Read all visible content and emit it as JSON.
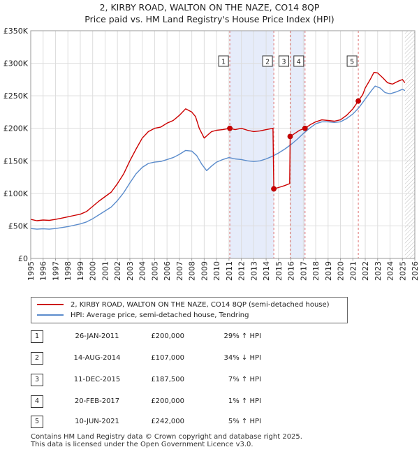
{
  "title_line1": "2, KIRBY ROAD, WALTON ON THE NAZE, CO14 8QP",
  "title_line2": "Price paid vs. HM Land Registry's House Price Index (HPI)",
  "chart_data": {
    "type": "line",
    "x_range": [
      1995,
      2026
    ],
    "ylim": [
      0,
      350000
    ],
    "y_ticks": [
      {
        "value": 0,
        "label": "£0"
      },
      {
        "value": 50000,
        "label": "£50K"
      },
      {
        "value": 100000,
        "label": "£100K"
      },
      {
        "value": 150000,
        "label": "£150K"
      },
      {
        "value": 200000,
        "label": "£200K"
      },
      {
        "value": 250000,
        "label": "£250K"
      },
      {
        "value": 300000,
        "label": "£300K"
      },
      {
        "value": 350000,
        "label": "£350K"
      }
    ],
    "x_ticks": [
      "1995",
      "1996",
      "1997",
      "1998",
      "1999",
      "2000",
      "2001",
      "2002",
      "2003",
      "2004",
      "2005",
      "2006",
      "2007",
      "2008",
      "2009",
      "2010",
      "2011",
      "2012",
      "2013",
      "2014",
      "2015",
      "2016",
      "2017",
      "2018",
      "2019",
      "2020",
      "2021",
      "2022",
      "2023",
      "2024",
      "2025",
      "2026"
    ],
    "grid": true,
    "data_end": 2025.2,
    "colors": {
      "property": "#cc0000",
      "hpi": "#5b8ccc",
      "band": "#e6ecfa",
      "vline": "#e07070",
      "hatch": "#bbbbbb"
    },
    "series": [
      {
        "name": "2, KIRBY ROAD, WALTON ON THE NAZE, CO14 8QP (semi-detached house)",
        "color": "#cc0000",
        "points": [
          [
            1995.0,
            60000
          ],
          [
            1995.5,
            58000
          ],
          [
            1996.0,
            59000
          ],
          [
            1996.5,
            58500
          ],
          [
            1997.0,
            60000
          ],
          [
            1997.5,
            62000
          ],
          [
            1998.0,
            64000
          ],
          [
            1998.5,
            66000
          ],
          [
            1999.0,
            68000
          ],
          [
            1999.5,
            72000
          ],
          [
            2000.0,
            80000
          ],
          [
            2000.5,
            88000
          ],
          [
            2001.0,
            95000
          ],
          [
            2001.5,
            102000
          ],
          [
            2002.0,
            115000
          ],
          [
            2002.5,
            130000
          ],
          [
            2003.0,
            150000
          ],
          [
            2003.5,
            168000
          ],
          [
            2004.0,
            185000
          ],
          [
            2004.5,
            195000
          ],
          [
            2005.0,
            200000
          ],
          [
            2005.5,
            202000
          ],
          [
            2006.0,
            208000
          ],
          [
            2006.5,
            212000
          ],
          [
            2007.0,
            220000
          ],
          [
            2007.5,
            230000
          ],
          [
            2008.0,
            225000
          ],
          [
            2008.3,
            218000
          ],
          [
            2008.6,
            200000
          ],
          [
            2009.0,
            185000
          ],
          [
            2009.3,
            190000
          ],
          [
            2009.6,
            195000
          ],
          [
            2010.0,
            197000
          ],
          [
            2010.5,
            198000
          ],
          [
            2011.07,
            200000
          ],
          [
            2011.5,
            198000
          ],
          [
            2012.0,
            200000
          ],
          [
            2012.5,
            197000
          ],
          [
            2013.0,
            195000
          ],
          [
            2013.5,
            196000
          ],
          [
            2014.0,
            198000
          ],
          [
            2014.55,
            200000
          ],
          [
            2014.62,
            107000
          ],
          [
            2015.0,
            109000
          ],
          [
            2015.5,
            112000
          ],
          [
            2015.9,
            115000
          ],
          [
            2015.94,
            187500
          ],
          [
            2016.3,
            192000
          ],
          [
            2016.7,
            197000
          ],
          [
            2017.14,
            200000
          ],
          [
            2017.6,
            206000
          ],
          [
            2018.0,
            210000
          ],
          [
            2018.5,
            213000
          ],
          [
            2019.0,
            212000
          ],
          [
            2019.5,
            211000
          ],
          [
            2020.0,
            213000
          ],
          [
            2020.5,
            220000
          ],
          [
            2021.0,
            230000
          ],
          [
            2021.44,
            242000
          ],
          [
            2021.8,
            252000
          ],
          [
            2022.0,
            262000
          ],
          [
            2022.4,
            275000
          ],
          [
            2022.7,
            286000
          ],
          [
            2023.0,
            285000
          ],
          [
            2023.4,
            278000
          ],
          [
            2023.8,
            270000
          ],
          [
            2024.2,
            268000
          ],
          [
            2024.6,
            272000
          ],
          [
            2025.0,
            275000
          ],
          [
            2025.2,
            270000
          ]
        ]
      },
      {
        "name": "HPI: Average price, semi-detached house, Tendring",
        "color": "#5b8ccc",
        "points": [
          [
            1995.0,
            46000
          ],
          [
            1995.5,
            45000
          ],
          [
            1996.0,
            45500
          ],
          [
            1996.5,
            45000
          ],
          [
            1997.0,
            46000
          ],
          [
            1997.5,
            47500
          ],
          [
            1998.0,
            49000
          ],
          [
            1998.5,
            51000
          ],
          [
            1999.0,
            53000
          ],
          [
            1999.5,
            56000
          ],
          [
            2000.0,
            61000
          ],
          [
            2000.5,
            67000
          ],
          [
            2001.0,
            73000
          ],
          [
            2001.5,
            79000
          ],
          [
            2002.0,
            89000
          ],
          [
            2002.5,
            101000
          ],
          [
            2003.0,
            116000
          ],
          [
            2003.5,
            130000
          ],
          [
            2004.0,
            140000
          ],
          [
            2004.5,
            146000
          ],
          [
            2005.0,
            148000
          ],
          [
            2005.5,
            149000
          ],
          [
            2006.0,
            152000
          ],
          [
            2006.5,
            155000
          ],
          [
            2007.0,
            160000
          ],
          [
            2007.5,
            166000
          ],
          [
            2008.0,
            165000
          ],
          [
            2008.4,
            158000
          ],
          [
            2008.8,
            145000
          ],
          [
            2009.2,
            135000
          ],
          [
            2009.6,
            142000
          ],
          [
            2010.0,
            148000
          ],
          [
            2010.5,
            152000
          ],
          [
            2011.0,
            155000
          ],
          [
            2011.5,
            153000
          ],
          [
            2012.0,
            152000
          ],
          [
            2012.5,
            150000
          ],
          [
            2013.0,
            149000
          ],
          [
            2013.5,
            150000
          ],
          [
            2014.0,
            153000
          ],
          [
            2014.5,
            157000
          ],
          [
            2015.0,
            162000
          ],
          [
            2015.5,
            168000
          ],
          [
            2016.0,
            175000
          ],
          [
            2016.5,
            183000
          ],
          [
            2017.0,
            192000
          ],
          [
            2017.5,
            200000
          ],
          [
            2018.0,
            207000
          ],
          [
            2018.5,
            210000
          ],
          [
            2019.0,
            210000
          ],
          [
            2019.5,
            209000
          ],
          [
            2020.0,
            210000
          ],
          [
            2020.5,
            215000
          ],
          [
            2021.0,
            222000
          ],
          [
            2021.5,
            232000
          ],
          [
            2022.0,
            245000
          ],
          [
            2022.5,
            258000
          ],
          [
            2022.8,
            265000
          ],
          [
            2023.2,
            262000
          ],
          [
            2023.6,
            255000
          ],
          [
            2024.0,
            253000
          ],
          [
            2024.5,
            256000
          ],
          [
            2025.0,
            260000
          ],
          [
            2025.2,
            258000
          ]
        ]
      }
    ],
    "bands": [
      [
        2011.07,
        2014.62
      ],
      [
        2015.94,
        2017.14
      ]
    ],
    "sales": [
      {
        "num": "1",
        "x": 2011.07,
        "value": 200000,
        "date": "26-JAN-2011",
        "price": "£200,000",
        "hpi": "29% ↑ HPI"
      },
      {
        "num": "2",
        "x": 2014.62,
        "value": 107000,
        "date": "14-AUG-2014",
        "price": "£107,000",
        "hpi": "34% ↓ HPI"
      },
      {
        "num": "3",
        "x": 2015.94,
        "value": 187500,
        "date": "11-DEC-2015",
        "price": "£187,500",
        "hpi": "7% ↑ HPI"
      },
      {
        "num": "4",
        "x": 2017.14,
        "value": 200000,
        "date": "20-FEB-2017",
        "price": "£200,000",
        "hpi": "1% ↑ HPI"
      },
      {
        "num": "5",
        "x": 2021.44,
        "value": 242000,
        "date": "10-JUN-2021",
        "price": "£242,000",
        "hpi": "5% ↑ HPI"
      }
    ]
  },
  "legend": {
    "property_label": "2, KIRBY ROAD, WALTON ON THE NAZE, CO14 8QP (semi-detached house)",
    "hpi_label": "HPI: Average price, semi-detached house, Tendring"
  },
  "footer": {
    "line1": "Contains HM Land Registry data © Crown copyright and database right 2025.",
    "line2": "This data is licensed under the Open Government Licence v3.0."
  }
}
